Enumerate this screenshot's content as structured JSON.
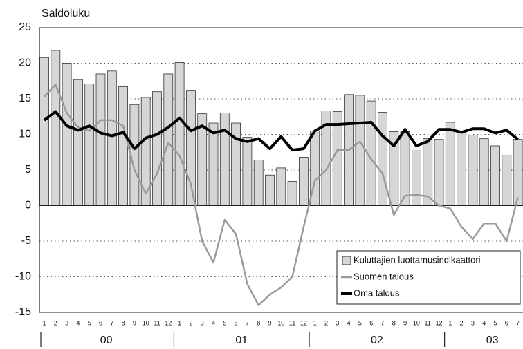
{
  "chart_data": {
    "type": "bar",
    "ylabel": "Saldoluku",
    "categories": [
      "1",
      "2",
      "3",
      "4",
      "5",
      "6",
      "7",
      "8",
      "9",
      "10",
      "11",
      "12",
      "1",
      "2",
      "3",
      "4",
      "5",
      "6",
      "7",
      "8",
      "9",
      "10",
      "11",
      "12",
      "1",
      "2",
      "3",
      "4",
      "5",
      "6",
      "7",
      "8",
      "9",
      "10",
      "11",
      "12",
      "1",
      "2",
      "3",
      "4",
      "5",
      "6",
      "7"
    ],
    "year_labels": [
      "00",
      "01",
      "02",
      "03"
    ],
    "series": [
      {
        "name": "Kuluttajien luottamusindikaattori",
        "type": "bar",
        "color": "#d6d6d6",
        "values": [
          20.8,
          21.8,
          20,
          17.7,
          17.1,
          18.5,
          18.9,
          16.7,
          14.2,
          15.2,
          16,
          18.5,
          20.1,
          16.2,
          12.9,
          11.6,
          13,
          11.6,
          9.6,
          6.4,
          4.3,
          5.3,
          3.4,
          6.8,
          10.5,
          13.3,
          13.2,
          15.6,
          15.5,
          14.7,
          13.1,
          10.4,
          10.4,
          7.7,
          9.4,
          9.3,
          11.7,
          10.3,
          9.9,
          9.4,
          8.4,
          7.1,
          9.3
        ]
      },
      {
        "name": "Suomen talous",
        "type": "line",
        "color": "#9a9a9a",
        "values": [
          15.3,
          17,
          13,
          11,
          10.5,
          12,
          12,
          11.2,
          5,
          1.7,
          4.5,
          8.8,
          7,
          3,
          -5,
          -8,
          -2,
          -4,
          -11,
          -14,
          -12.5,
          -11.5,
          -10,
          -3,
          3.5,
          5,
          7.8,
          7.8,
          9,
          6.5,
          4.5,
          -1.3,
          1.4,
          1.5,
          1.3,
          0,
          -0.4,
          -3,
          -4.7,
          -2.5,
          -2.5,
          -5,
          1.2
        ]
      },
      {
        "name": "Oma talous",
        "type": "line",
        "color": "#000000",
        "values": [
          12,
          13.2,
          11.2,
          10.6,
          11.2,
          10.2,
          9.8,
          10.3,
          8,
          9.5,
          10,
          11,
          12.3,
          10.5,
          11.2,
          10.2,
          10.6,
          9.4,
          9,
          9.4,
          8,
          9.7,
          7.8,
          8,
          10.5,
          11.4,
          11.4,
          11.5,
          11.6,
          11.7,
          9.8,
          8.4,
          10.7,
          8.4,
          9,
          10.7,
          10.7,
          10.3,
          10.8,
          10.8,
          10.2,
          10.6,
          9.3
        ]
      }
    ],
    "ylim": [
      -15,
      25
    ],
    "yticks": [
      -15,
      -10,
      -5,
      0,
      5,
      10,
      15,
      20,
      25
    ],
    "grid": true,
    "legend": "lower right"
  }
}
